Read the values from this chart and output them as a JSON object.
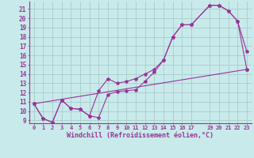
{
  "background_color": "#c8eaea",
  "grid_color": "#aacccc",
  "line_color": "#993399",
  "marker": "*",
  "marker_size": 3,
  "xlim": [
    -0.5,
    23.5
  ],
  "ylim": [
    8.7,
    21.8
  ],
  "xlabel": "Windchill (Refroidissement éolien,°C)",
  "xlabel_fontsize": 6.0,
  "xtick_fontsize": 5.0,
  "ytick_fontsize": 5.5,
  "xticks": [
    0,
    1,
    2,
    3,
    4,
    5,
    6,
    7,
    8,
    9,
    10,
    11,
    12,
    13,
    14,
    15,
    16,
    17,
    19,
    20,
    21,
    22,
    23
  ],
  "yticks": [
    9,
    10,
    11,
    12,
    13,
    14,
    15,
    16,
    17,
    18,
    19,
    20,
    21
  ],
  "line1_x": [
    0,
    1,
    2,
    3,
    4,
    5,
    6,
    7,
    8,
    9,
    10,
    11,
    12,
    13,
    14,
    15,
    16,
    17,
    19,
    20,
    21,
    22,
    23
  ],
  "line1_y": [
    10.8,
    9.2,
    8.8,
    11.2,
    10.3,
    10.2,
    9.5,
    9.3,
    11.8,
    12.1,
    12.2,
    12.3,
    13.2,
    14.2,
    15.5,
    18.0,
    19.3,
    19.3,
    21.4,
    21.4,
    20.8,
    19.7,
    16.4
  ],
  "line2_x": [
    0,
    1,
    2,
    3,
    4,
    5,
    6,
    7,
    8,
    9,
    10,
    11,
    12,
    13,
    14,
    15,
    16,
    17,
    19,
    20,
    21,
    22,
    23
  ],
  "line2_y": [
    10.8,
    9.2,
    8.8,
    11.2,
    10.3,
    10.2,
    9.5,
    12.2,
    13.5,
    13.0,
    13.2,
    13.5,
    14.0,
    14.5,
    15.5,
    18.0,
    19.3,
    19.3,
    21.4,
    21.4,
    20.8,
    19.7,
    14.5
  ],
  "line3_x": [
    0,
    23
  ],
  "line3_y": [
    10.8,
    14.5
  ]
}
